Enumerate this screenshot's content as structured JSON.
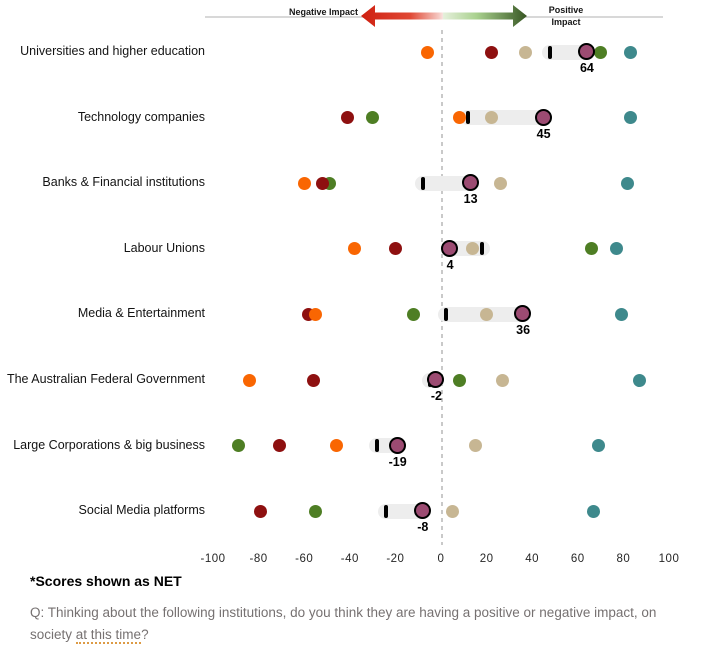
{
  "header": {
    "negative_label": "Negative Impact",
    "positive_line1": "Positive",
    "positive_line2": "Impact"
  },
  "footer": {
    "note": "*Scores shown as NET",
    "q_prefix": "Q: Thinking about the following institutions, do you think they are having a positive or negative impact, on society ",
    "q_underline": "at this time",
    "q_suffix": "?"
  },
  "chart_data": {
    "type": "scatter",
    "subtype": "dot-strip-plot-with-net-dumbbell",
    "title": "",
    "value_axis": {
      "min": -100,
      "max": 100,
      "tick_step": 20,
      "ticks": [
        -100,
        -80,
        -60,
        -40,
        -20,
        0,
        20,
        40,
        60,
        80,
        100
      ],
      "tick_labels": [
        "-100",
        "-80",
        "-60",
        "-40",
        "-20",
        "0",
        "20",
        "40",
        "60",
        "80",
        "100"
      ]
    },
    "colors": {
      "orange": "#f96602",
      "dark_red": "#8e1010",
      "green": "#4e7e24",
      "tan": "#c7b693",
      "teal": "#3e898c",
      "net": "#9c4b72",
      "net_ring": "#000000",
      "prev_tick": "#000000",
      "range_bar": "#ededed",
      "negative_arrow": "#ce1f10",
      "positive_arrow": "#375623"
    },
    "rows": [
      {
        "label": "Universities and higher education",
        "net": 64,
        "prev_tick": 48,
        "dots": {
          "orange": -6,
          "dark_red": 22,
          "tan": 37,
          "green": 70,
          "teal": 83
        }
      },
      {
        "label": "Technology companies",
        "net": 45,
        "prev_tick": 12,
        "dots": {
          "dark_red": -41,
          "green": -30,
          "orange": 8,
          "tan": 22,
          "teal": 83
        }
      },
      {
        "label": "Banks & Financial institutions",
        "net": 13,
        "prev_tick": -8,
        "dots": {
          "orange": -60,
          "dark_red": -52,
          "green": -49,
          "tan": 26,
          "teal": 82
        }
      },
      {
        "label": "Labour Unions",
        "net": 4,
        "prev_tick": 18,
        "dots": {
          "orange": -38,
          "dark_red": -20,
          "tan": 14,
          "green": 66,
          "teal": 77
        }
      },
      {
        "label": "Media & Entertainment",
        "net": 36,
        "prev_tick": 2,
        "dots": {
          "dark_red": -58,
          "orange": -55,
          "green": -12,
          "tan": 20,
          "teal": 79
        }
      },
      {
        "label": "The Australian Federal Government",
        "net": -2,
        "prev_tick": -5,
        "dots": {
          "orange": -84,
          "dark_red": -56,
          "green": 8,
          "tan": 27,
          "teal": 87
        }
      },
      {
        "label": "Large Corporations & big business",
        "net": -19,
        "prev_tick": -28,
        "dots": {
          "green": -89,
          "dark_red": -71,
          "orange": -46,
          "tan": 15,
          "teal": 69
        }
      },
      {
        "label": "Social Media platforms",
        "net": -8,
        "prev_tick": -24,
        "dots": {
          "dark_red": -79,
          "green": -55,
          "tan": 5,
          "teal": 67
        }
      }
    ]
  }
}
